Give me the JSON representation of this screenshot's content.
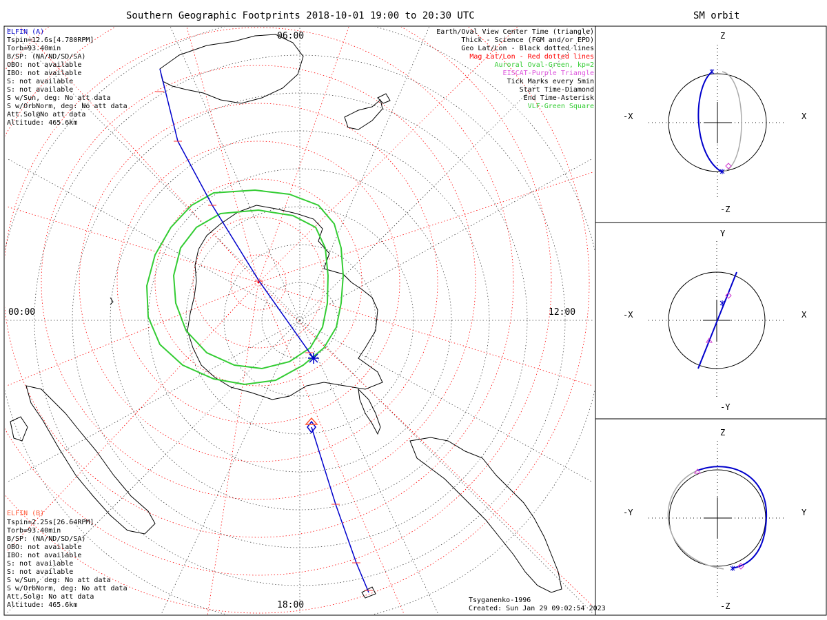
{
  "main_title": "Southern Geographic Footprints 2018-10-01 19:00 to 20:30 UTC",
  "orbit_title": "SM orbit",
  "hours": {
    "top": "06:00",
    "left": "00:00",
    "right": "12:00",
    "bottom": "18:00"
  },
  "elfin_a": {
    "title": "ELFIN (A)",
    "lines": [
      "Tspin=12.6s[4.780RPM]",
      "Torb=93.40min",
      "B/SP: (NA/ND/SD/SA)",
      "OBO: not available",
      "IBO: not available",
      "S: not available",
      "S: not available",
      "S w/Sun, deg: No att data",
      "S w/OrbNorm, deg: No att data",
      "Att.Sol@No att data",
      "Altitude: 465.6km"
    ],
    "color": "#0000cc"
  },
  "elfin_b": {
    "title": "ELFIN (B)",
    "lines": [
      "Tspin=2.25s[26.64RPM]",
      "Torb=93.40min",
      "B/SP: (NA/ND/SD/SA)",
      "OBO: not available",
      "IBO: not available",
      "S: not available",
      "S: not available",
      "S w/Sun, deg: No att data",
      "S w/OrbNorm, deg: No att data",
      "Att.Sol@: No att data",
      "Altitude: 465.6km"
    ],
    "color": "#ff5533"
  },
  "legend": [
    {
      "text": "Earth/Oval View Center Time (triangle)",
      "color": "#000000"
    },
    {
      "text": "Thick - Science (FGM and/or EPD)",
      "color": "#000000"
    },
    {
      "text": "Geo Lat/Lon - Black dotted lines",
      "color": "#000000"
    },
    {
      "text": "Mag Lat/Lon - Red dotted lines",
      "color": "#ff0000"
    },
    {
      "text": "Auroral Oval-Green, kp=2",
      "color": "#33cc33"
    },
    {
      "text": "EISCAT-Purple Triangle",
      "color": "#dd55dd"
    },
    {
      "text": "Tick Marks every 5min",
      "color": "#000000"
    },
    {
      "text": "Start Time-Diamond",
      "color": "#000000"
    },
    {
      "text": "End Time-Asterisk",
      "color": "#000000"
    },
    {
      "text": "VLF-Green Square",
      "color": "#33cc33"
    }
  ],
  "footer": {
    "model": "Tsyganenko-1996",
    "created": "Created: Sun Jan 29 09:02:54 2023"
  },
  "orbit_panels": [
    {
      "top": "Z",
      "bottom": "-Z",
      "left": "-X",
      "right": "X"
    },
    {
      "top": "Y",
      "bottom": "-Y",
      "left": "-X",
      "right": "X"
    },
    {
      "top": "Z",
      "bottom": "-Z",
      "left": "-Y",
      "right": "Y"
    }
  ]
}
